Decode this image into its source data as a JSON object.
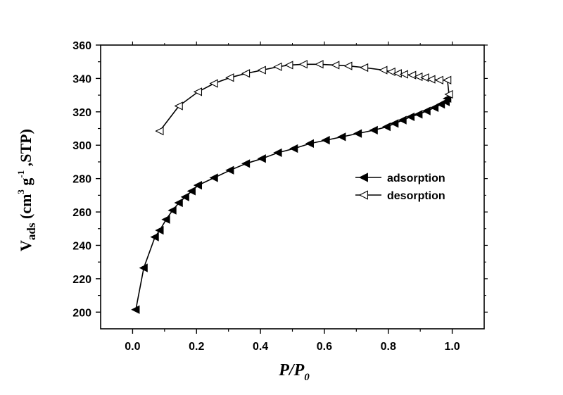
{
  "chart_data": {
    "type": "line",
    "xlabel_main": "P",
    "xlabel_sep": "/",
    "xlabel_second": "P",
    "xlabel_sub": "0",
    "ylabel_main": "V",
    "ylabel_sub": "ads",
    "ylabel_open": " (cm",
    "ylabel_sup1": "3",
    "ylabel_mid": " g",
    "ylabel_sup2": "-1",
    "ylabel_close": " ,STP)",
    "xlim": [
      -0.1,
      1.1
    ],
    "ylim": [
      190,
      360
    ],
    "xticks": [
      0.0,
      0.2,
      0.4,
      0.6,
      0.8,
      1.0
    ],
    "xtick_labels": [
      "0.0",
      "0.2",
      "0.4",
      "0.6",
      "0.8",
      "1.0"
    ],
    "yticks": [
      200,
      220,
      240,
      260,
      280,
      300,
      320,
      340,
      360
    ],
    "ytick_labels": [
      "200",
      "220",
      "240",
      "260",
      "280",
      "300",
      "320",
      "340",
      "360"
    ],
    "legend_position": "center-right",
    "series": [
      {
        "name": "adsorption",
        "marker": "filled-left-triangle",
        "color": "#000000",
        "x": [
          0.01,
          0.035,
          0.07,
          0.085,
          0.105,
          0.125,
          0.145,
          0.165,
          0.185,
          0.205,
          0.255,
          0.305,
          0.355,
          0.405,
          0.455,
          0.505,
          0.555,
          0.605,
          0.655,
          0.705,
          0.755,
          0.795,
          0.82,
          0.845,
          0.87,
          0.895,
          0.92,
          0.945,
          0.965,
          0.98,
          0.985
        ],
        "y": [
          201.5,
          226.5,
          245,
          249,
          255.5,
          261,
          265.5,
          269,
          272.5,
          276,
          280.5,
          285,
          289,
          292,
          295.5,
          298,
          301,
          303,
          305,
          307,
          309,
          311,
          313,
          315,
          317,
          318.5,
          320.5,
          322.5,
          324.5,
          326,
          328
        ]
      },
      {
        "name": "desorption",
        "marker": "open-left-triangle",
        "color": "#000000",
        "x": [
          0.085,
          0.145,
          0.205,
          0.255,
          0.305,
          0.355,
          0.405,
          0.455,
          0.49,
          0.535,
          0.585,
          0.635,
          0.675,
          0.725,
          0.785,
          0.81,
          0.83,
          0.85,
          0.875,
          0.895,
          0.915,
          0.935,
          0.96,
          0.985,
          0.99
        ],
        "y": [
          308.5,
          323.5,
          332,
          337,
          340.5,
          343,
          345,
          347,
          348,
          348.5,
          348.5,
          348,
          347.5,
          346.5,
          345,
          344,
          343,
          342.5,
          342,
          341,
          340.5,
          339.5,
          339,
          339,
          330.5
        ]
      }
    ]
  }
}
